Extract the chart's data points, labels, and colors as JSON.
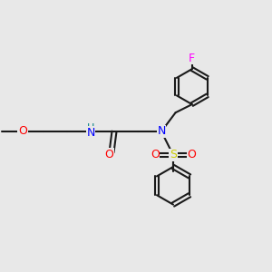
{
  "bg_color": "#e8e8e8",
  "bond_color": "#1a1a1a",
  "bond_lw": 1.5,
  "atom_colors": {
    "N": "#0000ff",
    "O": "#ff0000",
    "F": "#ff00ff",
    "S": "#cccc00",
    "H_on_N": "#008080",
    "C": "#1a1a1a"
  },
  "font_size": 9,
  "font_size_small": 8
}
